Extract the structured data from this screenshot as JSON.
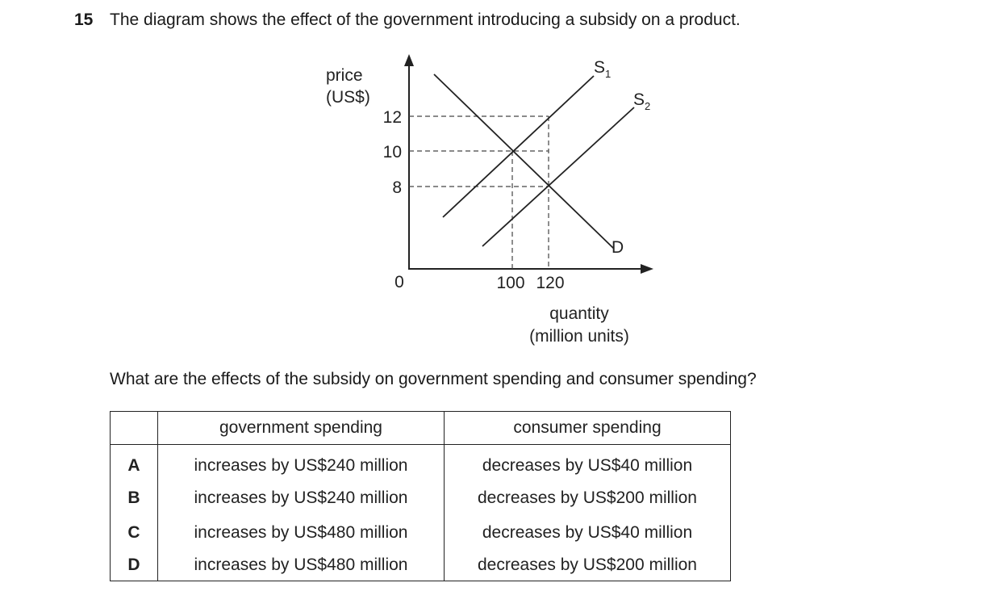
{
  "question": {
    "number": "15",
    "text": "The diagram shows the effect of the government introducing a subsidy on a product."
  },
  "diagram": {
    "y_axis_label_line1": "price",
    "y_axis_label_line2": "(US$)",
    "x_axis_label_line1": "quantity",
    "x_axis_label_line2": "(million units)",
    "origin_label": "0",
    "y_ticks": [
      "12",
      "10",
      "8"
    ],
    "x_ticks": [
      "100",
      "120"
    ],
    "curves": {
      "s1": {
        "letter": "S",
        "sub": "1"
      },
      "s2": {
        "letter": "S",
        "sub": "2"
      },
      "d": {
        "letter": "D"
      }
    },
    "equilibria": [
      {
        "quantity": 100,
        "price": 10
      },
      {
        "quantity": 120,
        "price": 8
      }
    ],
    "supply_price_at_120": 12
  },
  "prompt": "What are the effects of the subsidy on government spending and consumer spending?",
  "table": {
    "headers": [
      "",
      "government spending",
      "consumer spending"
    ],
    "rows": [
      {
        "letter": "A",
        "gov": "increases by US$240 million",
        "con": "decreases by US$40 million"
      },
      {
        "letter": "B",
        "gov": "increases by US$240 million",
        "con": "decreases by US$200 million"
      },
      {
        "letter": "C",
        "gov": "increases by US$480 million",
        "con": "decreases by US$40 million"
      },
      {
        "letter": "D",
        "gov": "increases by US$480 million",
        "con": "decreases by US$200 million"
      }
    ]
  }
}
